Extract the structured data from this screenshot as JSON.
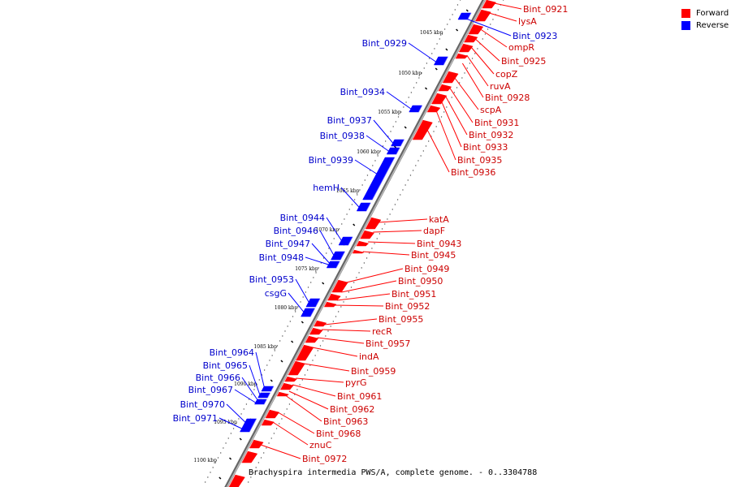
{
  "legend": [
    {
      "label": "Forward",
      "color": "#ff0000"
    },
    {
      "label": "Reverse",
      "color": "#0000ff"
    }
  ],
  "caption": "Brachyspira intermedia PWS/A, complete genome. - 0..3304788",
  "ticks": [
    "1045 kbp",
    "1050 kbp",
    "1055 kbp",
    "1060 kbp",
    "1065 kbp",
    "1070 kbp",
    "1075 kbp",
    "1080 kbp",
    "1085 kbp",
    "1090 kbp",
    "1095 kbp",
    "1100 kbp"
  ],
  "forward_genes": [
    "Bint_0921",
    "lysA",
    "ompR",
    "Bint_0925",
    "copZ",
    "ruvA",
    "Bint_0928",
    "scpA",
    "Bint_0931",
    "Bint_0932",
    "Bint_0933",
    "Bint_0935",
    "Bint_0936",
    "katA",
    "dapF",
    "Bint_0943",
    "Bint_0945",
    "Bint_0949",
    "Bint_0950",
    "Bint_0951",
    "Bint_0952",
    "Bint_0955",
    "recR",
    "Bint_0957",
    "indA",
    "Bint_0959",
    "pyrG",
    "Bint_0961",
    "Bint_0962",
    "Bint_0963",
    "Bint_0968",
    "znuC",
    "Bint_0972"
  ],
  "reverse_genes": [
    "Bint_0923",
    "Bint_0929",
    "Bint_0934",
    "Bint_0937",
    "Bint_0938",
    "Bint_0939",
    "hemH",
    "Bint_0944",
    "Bint_0946",
    "Bint_0947",
    "Bint_0948",
    "Bint_0953",
    "csgG",
    "Bint_0964",
    "Bint_0965",
    "Bint_0966",
    "Bint_0967",
    "Bint_0970",
    "Bint_0971"
  ],
  "colors": {
    "forward": "#ff0000",
    "reverse": "#0000ff",
    "backbone": "#888888"
  }
}
